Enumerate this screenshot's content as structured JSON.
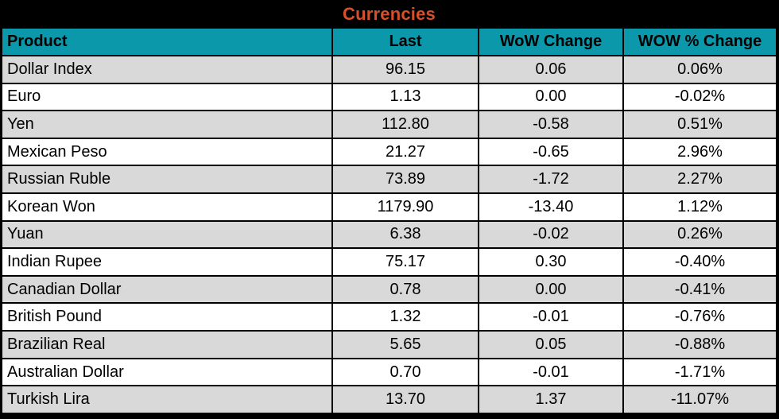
{
  "title": "Currencies",
  "colors": {
    "frame": "#000000",
    "title_text": "#D6502C",
    "header_bg": "#0A98AA",
    "header_text": "#000000",
    "row_bg": "#FFFFFF",
    "row_alt_bg": "#D9D9D9",
    "cell_text": "#000000"
  },
  "table": {
    "columns": [
      "Product",
      "Last",
      "WoW Change",
      "WOW % Change"
    ],
    "rows": [
      {
        "product": "Dollar Index",
        "last": "96.15",
        "wow_change": "0.06",
        "wow_pct_change": "0.06%"
      },
      {
        "product": "Euro",
        "last": "1.13",
        "wow_change": "0.00",
        "wow_pct_change": "-0.02%"
      },
      {
        "product": "Yen",
        "last": "112.80",
        "wow_change": "-0.58",
        "wow_pct_change": "0.51%"
      },
      {
        "product": "Mexican Peso",
        "last": "21.27",
        "wow_change": "-0.65",
        "wow_pct_change": "2.96%"
      },
      {
        "product": "Russian Ruble",
        "last": "73.89",
        "wow_change": "-1.72",
        "wow_pct_change": "2.27%"
      },
      {
        "product": "Korean Won",
        "last": "1179.90",
        "wow_change": "-13.40",
        "wow_pct_change": "1.12%"
      },
      {
        "product": "Yuan",
        "last": "6.38",
        "wow_change": "-0.02",
        "wow_pct_change": "0.26%"
      },
      {
        "product": "Indian Rupee",
        "last": "75.17",
        "wow_change": "0.30",
        "wow_pct_change": "-0.40%"
      },
      {
        "product": "Canadian Dollar",
        "last": "0.78",
        "wow_change": "0.00",
        "wow_pct_change": "-0.41%"
      },
      {
        "product": "British Pound",
        "last": "1.32",
        "wow_change": "-0.01",
        "wow_pct_change": "-0.76%"
      },
      {
        "product": "Brazilian Real",
        "last": "5.65",
        "wow_change": "0.05",
        "wow_pct_change": "-0.88%"
      },
      {
        "product": "Australian Dollar",
        "last": "0.70",
        "wow_change": "-0.01",
        "wow_pct_change": "-1.71%"
      },
      {
        "product": "Turkish Lira",
        "last": "13.70",
        "wow_change": "1.37",
        "wow_pct_change": "-11.07%"
      }
    ]
  }
}
